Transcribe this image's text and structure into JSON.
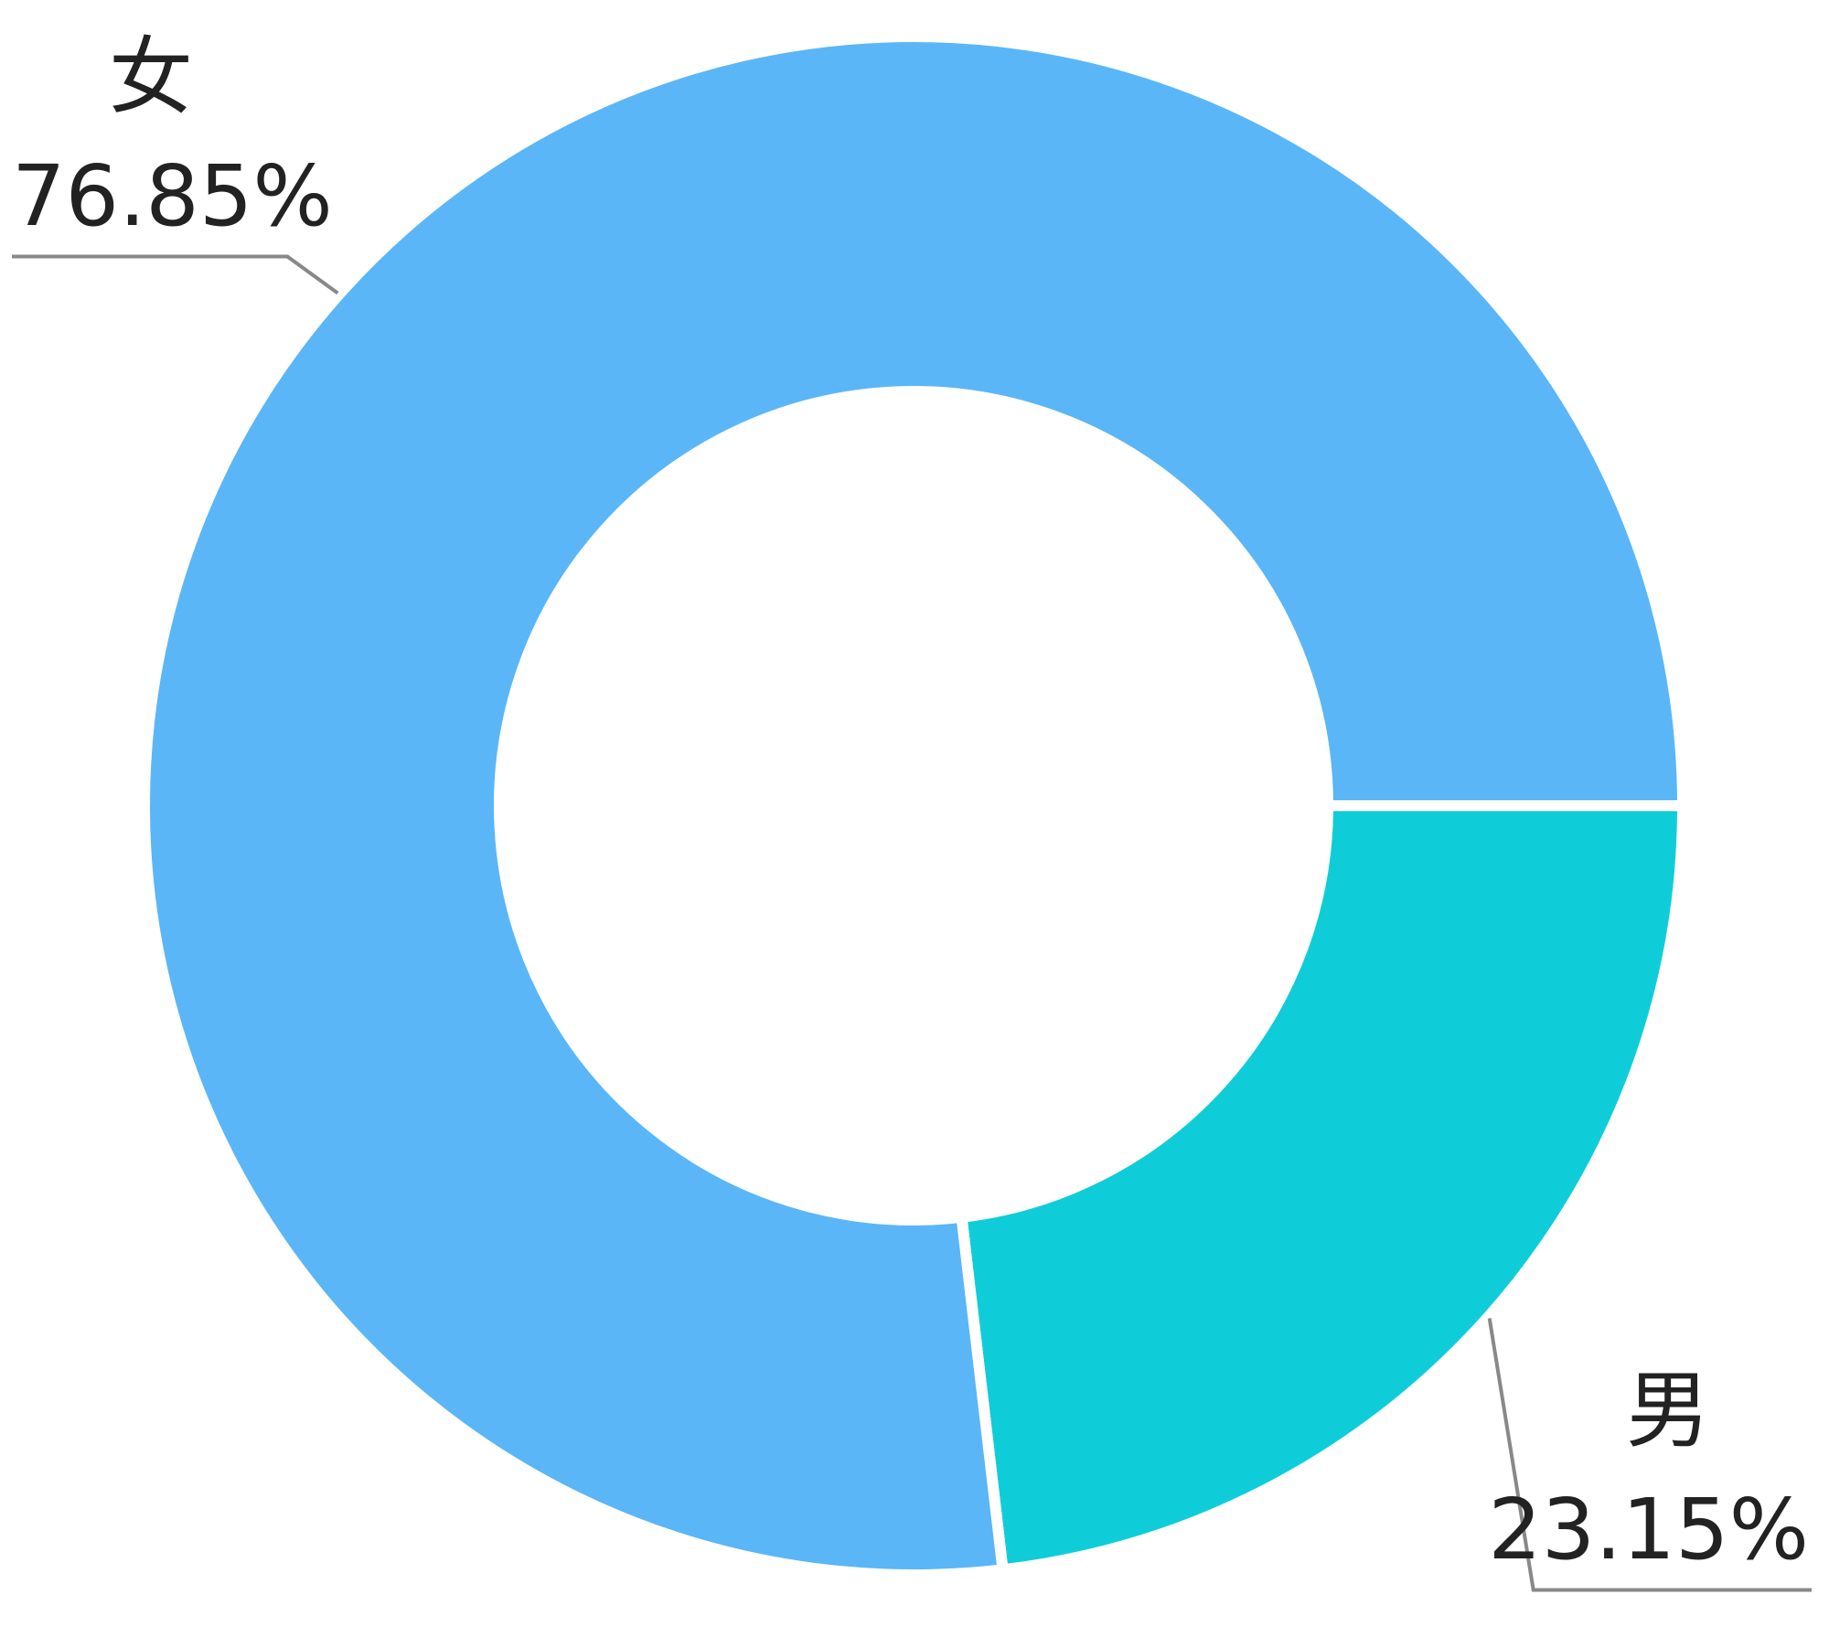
{
  "chart_data": {
    "type": "pie",
    "categories": [
      "女",
      "男"
    ],
    "values": [
      76.85,
      23.15
    ],
    "value_labels": [
      "76.85%",
      "23.15%"
    ],
    "colors": [
      "#5ab6f7",
      "#0fcdd8"
    ]
  }
}
